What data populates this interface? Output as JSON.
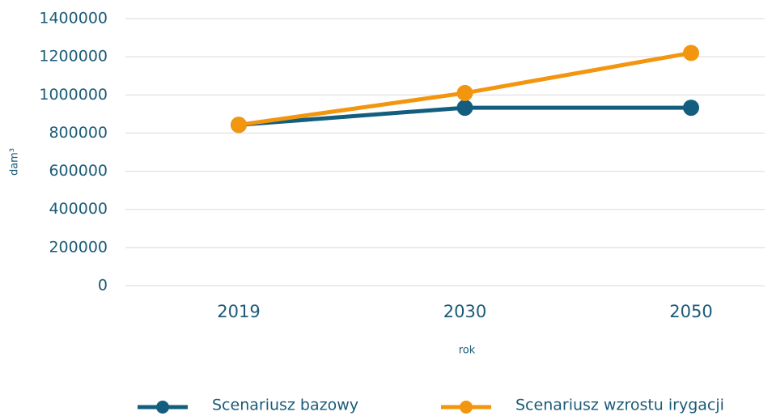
{
  "chart_data": {
    "type": "line",
    "x_label": "rok",
    "y_label": "dam³",
    "categories": [
      "2019",
      "2030",
      "2050"
    ],
    "series": [
      {
        "name": "Scenariusz bazowy",
        "color": "#135e7e",
        "values": [
          843000,
          933000,
          933000
        ]
      },
      {
        "name": "Scenariusz wzrostu irygacji",
        "color": "#f3960f",
        "values": [
          843000,
          1010000,
          1220000
        ]
      }
    ],
    "ylim": [
      0,
      1400000
    ],
    "yticks": [
      0,
      200000,
      400000,
      600000,
      800000,
      1000000,
      1200000,
      1400000
    ],
    "grid": true,
    "legend": "bottom"
  }
}
